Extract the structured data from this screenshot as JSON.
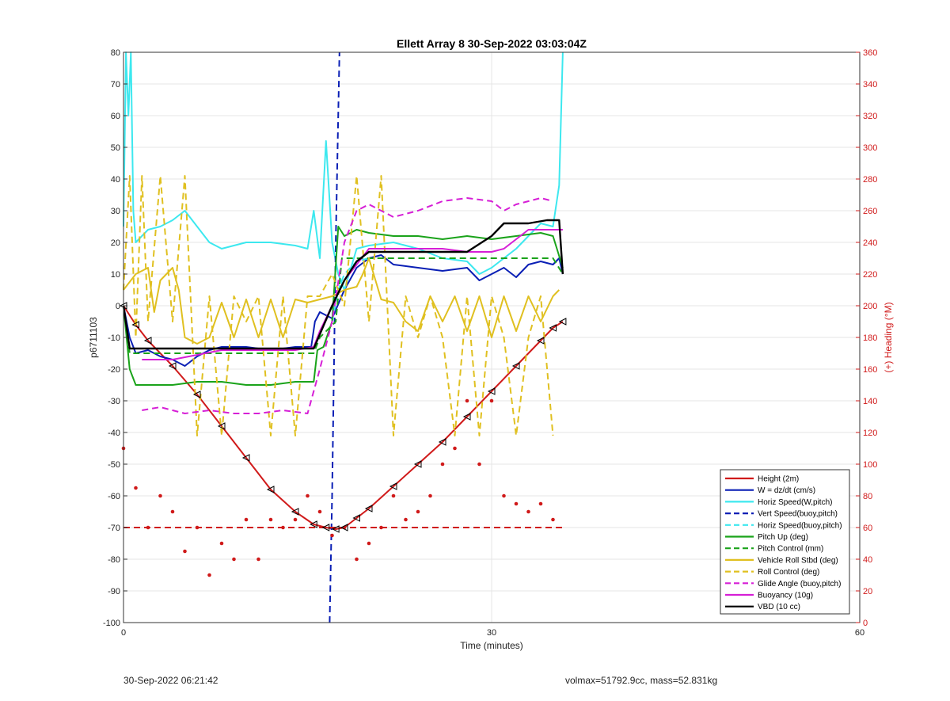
{
  "chart_data": {
    "type": "line",
    "title": "Ellett Array 8 30-Sep-2022 03:03:04Z",
    "xlabel": "Time (minutes)",
    "ylabel": "p6711103",
    "y2label": "(+) Heading (°M)",
    "xlim": [
      0,
      60
    ],
    "ylim": [
      -100,
      80
    ],
    "y2lim": [
      0,
      360
    ],
    "xticks": [
      0,
      30,
      60
    ],
    "yticks": [
      80,
      70,
      60,
      50,
      40,
      30,
      20,
      10,
      0,
      -10,
      -20,
      -30,
      -40,
      -50,
      -60,
      -70,
      -80,
      -90,
      -100
    ],
    "y2ticks": [
      360,
      340,
      320,
      300,
      280,
      260,
      240,
      220,
      200,
      180,
      160,
      140,
      120,
      100,
      80,
      60,
      40,
      20,
      0
    ],
    "grid": true,
    "legend_position": "bottom-right",
    "legend": [
      {
        "label": "Height (2m)",
        "color": "#d01a1a",
        "style": "solid"
      },
      {
        "label": "W = dz/dt (cm/s)",
        "color": "#0a1fb5",
        "style": "solid"
      },
      {
        "label": "Horiz Speed(W,pitch)",
        "color": "#3de8ef",
        "style": "solid"
      },
      {
        "label": "Vert Speed(buoy,pitch)",
        "color": "#0a1fb5",
        "style": "dashed"
      },
      {
        "label": "Horiz Speed(buoy,pitch)",
        "color": "#3de8ef",
        "style": "dashed"
      },
      {
        "label": "Pitch Up (deg)",
        "color": "#1aa31a",
        "style": "solid"
      },
      {
        "label": "Pitch Control (mm)",
        "color": "#1aa31a",
        "style": "dashed"
      },
      {
        "label": "Vehicle Roll Stbd (deg)",
        "color": "#e0c020",
        "style": "solid"
      },
      {
        "label": "Roll Control (deg)",
        "color": "#e0c020",
        "style": "dashed"
      },
      {
        "label": "Glide Angle (buoy,pitch)",
        "color": "#d61fd6",
        "style": "dashed"
      },
      {
        "label": "Buoyancy (10g)",
        "color": "#d61fd6",
        "style": "solid"
      },
      {
        "label": "VBD (10 cc)",
        "color": "#000000",
        "style": "solid"
      }
    ],
    "series": [
      {
        "name": "Height (2m)",
        "x": [
          0,
          1,
          2,
          4,
          6,
          8,
          10,
          12,
          14,
          15.5,
          16.5,
          17.3,
          18,
          19,
          20,
          22,
          24,
          26,
          28,
          30,
          32,
          34,
          35,
          35.8
        ],
        "y": [
          0,
          -6,
          -11,
          -19,
          -28,
          -38,
          -48,
          -58,
          -65,
          -69,
          -70,
          -70.5,
          -70,
          -67,
          -64,
          -57,
          -50,
          -43,
          -35,
          -27,
          -19,
          -11,
          -7,
          -5
        ]
      },
      {
        "name": "W = dz/dt (cm/s)",
        "x": [
          0,
          0.5,
          1,
          2,
          3,
          4,
          5,
          6,
          7,
          8,
          10,
          12,
          14,
          15.3,
          15.6,
          16,
          17,
          18,
          19,
          20,
          21,
          22,
          24,
          26,
          28,
          29,
          30,
          31,
          32,
          33,
          34,
          35,
          35.5,
          35.8
        ],
        "y": [
          0,
          -10,
          -15,
          -14,
          -16,
          -17,
          -19,
          -16,
          -14,
          -13,
          -13,
          -14,
          -13,
          -13,
          -5,
          -2,
          -4,
          5,
          12,
          15,
          16,
          13,
          12,
          11,
          12,
          8,
          10,
          12,
          9,
          13,
          14,
          13,
          15,
          10
        ]
      },
      {
        "name": "Horiz Speed(W,pitch)",
        "x": [
          0,
          0.2,
          0.4,
          0.6,
          0.8,
          1,
          2,
          3,
          4,
          5,
          6,
          7,
          8,
          10,
          12,
          14,
          15,
          15.5,
          16,
          16.5,
          17,
          17.5,
          18,
          19,
          20,
          22,
          24,
          26,
          28,
          29,
          30,
          31,
          32,
          33,
          34,
          35,
          35.5,
          35.8
        ],
        "y": [
          25,
          80,
          60,
          80,
          30,
          20,
          24,
          25,
          27,
          30,
          25,
          20,
          18,
          20,
          20,
          19,
          18,
          30,
          15,
          52,
          20,
          10,
          5,
          18,
          19,
          20,
          18,
          15,
          14,
          10,
          12,
          15,
          18,
          22,
          26,
          25,
          38,
          80
        ]
      },
      {
        "name": "Vert Speed(buoy,pitch)",
        "x": [
          16.8,
          17,
          17.3,
          17.6
        ],
        "y": [
          -100,
          -60,
          20,
          80
        ]
      },
      {
        "name": "Horiz Speed(buoy,pitch)",
        "x": [
          17,
          17.5,
          18,
          19,
          20
        ],
        "y": [
          -5,
          5,
          10,
          14,
          15
        ]
      },
      {
        "name": "Pitch Up (deg)",
        "x": [
          0,
          0.5,
          1,
          2,
          4,
          6,
          8,
          10,
          12,
          14,
          15.5,
          15.8,
          16.3,
          17,
          17.5,
          18,
          19,
          20,
          22,
          24,
          26,
          28,
          30,
          32,
          34,
          35,
          35.8
        ],
        "y": [
          0,
          -20,
          -25,
          -25,
          -25,
          -24,
          -24,
          -25,
          -25,
          -24,
          -24,
          -14,
          -13,
          -5,
          25,
          22,
          24,
          23,
          22,
          22,
          21,
          22,
          21,
          22,
          23,
          22,
          12
        ]
      },
      {
        "name": "Pitch Control (mm)",
        "x": [
          0,
          0.5,
          1,
          15.5,
          16,
          17.3,
          17.8,
          35,
          35.8
        ],
        "y": [
          0,
          -15,
          -15,
          -15,
          -10,
          -5,
          15,
          15,
          10
        ]
      },
      {
        "name": "Vehicle Roll Stbd (deg)",
        "x": [
          0,
          1,
          2,
          2.5,
          3,
          4,
          4.5,
          5,
          6,
          7,
          8,
          9,
          10,
          11,
          12,
          13,
          14,
          15,
          16,
          17,
          18,
          19,
          19.5,
          20,
          21,
          22,
          23,
          24,
          25,
          26,
          27,
          28,
          29,
          30,
          31,
          32,
          33,
          34,
          35,
          35.5
        ],
        "y": [
          5,
          10,
          12,
          -2,
          8,
          12,
          5,
          -10,
          -12,
          -10,
          1,
          -10,
          2,
          -10,
          2,
          -10,
          2,
          1,
          2,
          3,
          5,
          6,
          10,
          15,
          2,
          1,
          -5,
          -8,
          3,
          -5,
          3,
          -8,
          3,
          -10,
          3,
          -8,
          3,
          -5,
          3,
          5
        ]
      },
      {
        "name": "Roll Control (deg)",
        "x": [
          0,
          0.5,
          1,
          1.5,
          2,
          3,
          4,
          5,
          6,
          7,
          8,
          9,
          10,
          11,
          12,
          13,
          14,
          15,
          16,
          17,
          18,
          19,
          20,
          21,
          22,
          23,
          24,
          25,
          26,
          27,
          28,
          29,
          30,
          31,
          32,
          33,
          34,
          35
        ],
        "y": [
          5,
          41,
          -10,
          41,
          -5,
          41,
          -5,
          41,
          -41,
          3,
          -41,
          3,
          -5,
          3,
          -41,
          3,
          -41,
          3,
          3,
          10,
          0,
          41,
          -5,
          41,
          -41,
          3,
          -10,
          3,
          -10,
          -41,
          3,
          -41,
          3,
          -10,
          -41,
          -10,
          3,
          -41
        ]
      },
      {
        "name": "Glide Angle (buoy,pitch)",
        "x": [
          1.5,
          3,
          5,
          7,
          9,
          11,
          13,
          15,
          16,
          17,
          18,
          19,
          20,
          22,
          24,
          26,
          28,
          30,
          31,
          32,
          34,
          35
        ],
        "y": [
          -33,
          -32,
          -34,
          -33,
          -34,
          -34,
          -33,
          -34,
          -20,
          -5,
          20,
          30,
          32,
          28,
          30,
          33,
          34,
          33,
          30,
          32,
          34,
          33
        ]
      },
      {
        "name": "Buoyancy (10g)",
        "x": [
          1.5,
          4,
          8,
          12,
          14,
          15.5,
          16,
          17,
          18,
          19,
          20,
          22,
          26,
          28,
          30,
          31,
          33,
          35,
          35.8
        ],
        "y": [
          -17,
          -17,
          -14,
          -14,
          -14,
          -13,
          -8,
          0,
          8,
          13,
          18,
          18,
          18,
          17,
          17,
          18,
          24,
          24,
          24
        ]
      },
      {
        "name": "VBD (10 cc)",
        "x": [
          0,
          0.5,
          1,
          4,
          8,
          12,
          14,
          15.5,
          16,
          17,
          18,
          19,
          20,
          22,
          26,
          28,
          30,
          31,
          33,
          34.5,
          35.5,
          35.8
        ],
        "y": [
          0,
          -13.5,
          -13.5,
          -13.5,
          -13.5,
          -13.5,
          -13.5,
          -13.5,
          -9,
          0,
          8,
          14,
          17,
          17,
          17,
          17,
          22,
          26,
          26,
          27,
          27,
          10
        ]
      },
      {
        "name": "Heading",
        "axis": "right",
        "x": [
          0,
          1,
          2,
          3,
          4,
          5,
          6,
          7,
          8,
          9,
          10,
          11,
          12,
          13,
          14,
          15,
          16,
          17,
          18,
          19,
          20,
          21,
          22,
          23,
          24,
          25,
          26,
          27,
          28,
          29,
          30,
          31,
          32,
          33,
          34,
          35
        ],
        "y": [
          110,
          85,
          60,
          80,
          70,
          45,
          60,
          30,
          50,
          40,
          65,
          40,
          65,
          60,
          65,
          80,
          70,
          55,
          60,
          40,
          50,
          60,
          80,
          65,
          70,
          80,
          100,
          110,
          140,
          100,
          140,
          80,
          75,
          70,
          75,
          65
        ]
      },
      {
        "name": "Heading reference",
        "axis": "right",
        "x": [
          0,
          35.8
        ],
        "y": [
          60,
          60
        ]
      }
    ]
  },
  "footer": {
    "left": "30-Sep-2022 06:21:42",
    "right": "volmax=51792.9cc, mass=52.831kg"
  }
}
